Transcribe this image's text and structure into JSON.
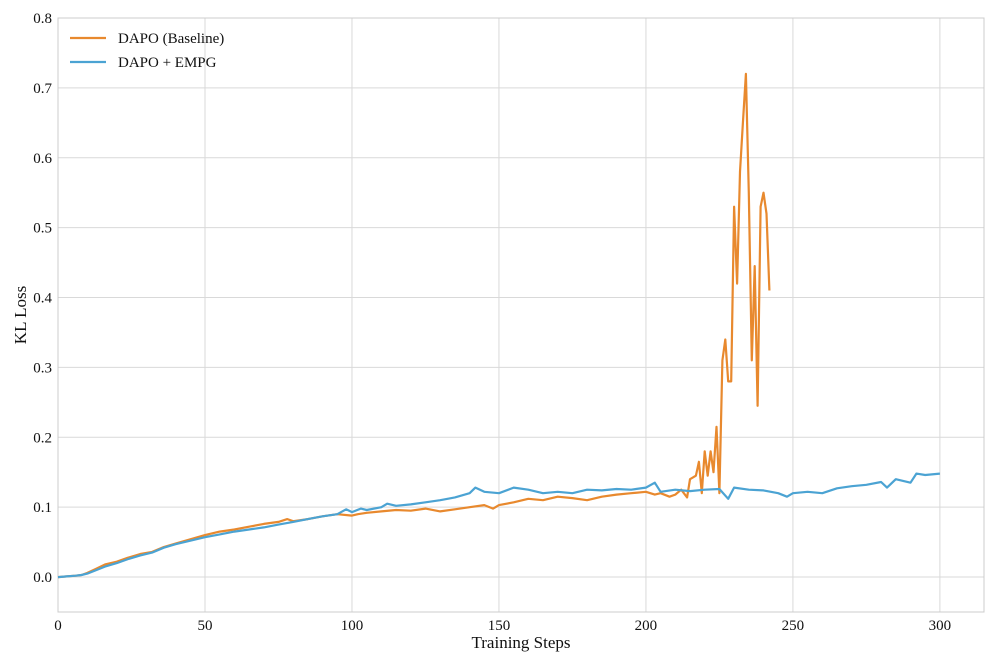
{
  "chart_data": {
    "type": "line",
    "title": "",
    "xlabel": "Training Steps",
    "ylabel": "KL Loss",
    "xlim": [
      0,
      315
    ],
    "ylim": [
      -0.05,
      0.8
    ],
    "xticks": [
      0,
      50,
      100,
      150,
      200,
      250,
      300
    ],
    "yticks": [
      0.0,
      0.1,
      0.2,
      0.3,
      0.4,
      0.5,
      0.6,
      0.7,
      0.8
    ],
    "grid": true,
    "legend_position": "top-left",
    "series": [
      {
        "name": "DAPO (Baseline)",
        "color": "#e8892e",
        "x": [
          0,
          3,
          6,
          8,
          10,
          13,
          16,
          20,
          24,
          28,
          32,
          36,
          40,
          45,
          50,
          55,
          60,
          65,
          70,
          75,
          78,
          80,
          85,
          90,
          95,
          100,
          102,
          105,
          110,
          115,
          120,
          125,
          130,
          135,
          140,
          145,
          148,
          150,
          155,
          160,
          165,
          170,
          175,
          180,
          185,
          190,
          195,
          200,
          203,
          205,
          208,
          210,
          212,
          214,
          215,
          217,
          218,
          219,
          220,
          221,
          222,
          223,
          224,
          225,
          226,
          227,
          228,
          229,
          230,
          231,
          232,
          233,
          234,
          235,
          236,
          237,
          238,
          239,
          240,
          241,
          242
        ],
        "y": [
          0.0,
          0.001,
          0.002,
          0.003,
          0.006,
          0.012,
          0.018,
          0.022,
          0.028,
          0.033,
          0.036,
          0.043,
          0.048,
          0.054,
          0.06,
          0.065,
          0.068,
          0.072,
          0.076,
          0.079,
          0.083,
          0.08,
          0.083,
          0.087,
          0.09,
          0.088,
          0.09,
          0.092,
          0.094,
          0.096,
          0.095,
          0.098,
          0.094,
          0.097,
          0.1,
          0.103,
          0.098,
          0.103,
          0.107,
          0.112,
          0.11,
          0.115,
          0.113,
          0.11,
          0.115,
          0.118,
          0.12,
          0.122,
          0.118,
          0.12,
          0.115,
          0.118,
          0.125,
          0.114,
          0.14,
          0.145,
          0.165,
          0.12,
          0.18,
          0.145,
          0.18,
          0.15,
          0.215,
          0.12,
          0.31,
          0.34,
          0.28,
          0.28,
          0.53,
          0.42,
          0.58,
          0.65,
          0.72,
          0.55,
          0.31,
          0.445,
          0.245,
          0.53,
          0.55,
          0.52,
          0.41
        ]
      },
      {
        "name": "DAPO + EMPG",
        "color": "#4ba3d3",
        "x": [
          0,
          3,
          6,
          8,
          10,
          13,
          16,
          20,
          24,
          28,
          32,
          36,
          40,
          45,
          50,
          55,
          60,
          65,
          70,
          75,
          80,
          85,
          90,
          95,
          98,
          100,
          103,
          105,
          110,
          112,
          115,
          120,
          125,
          130,
          135,
          140,
          142,
          145,
          150,
          155,
          160,
          165,
          170,
          175,
          180,
          185,
          190,
          195,
          200,
          203,
          205,
          210,
          215,
          220,
          225,
          228,
          230,
          235,
          240,
          245,
          248,
          250,
          255,
          260,
          265,
          270,
          275,
          280,
          282,
          285,
          290,
          292,
          295,
          300
        ],
        "y": [
          0.0,
          0.001,
          0.002,
          0.003,
          0.005,
          0.01,
          0.015,
          0.02,
          0.026,
          0.031,
          0.035,
          0.042,
          0.047,
          0.052,
          0.057,
          0.061,
          0.065,
          0.068,
          0.071,
          0.075,
          0.079,
          0.083,
          0.087,
          0.09,
          0.097,
          0.093,
          0.098,
          0.096,
          0.1,
          0.105,
          0.102,
          0.104,
          0.107,
          0.11,
          0.114,
          0.12,
          0.128,
          0.122,
          0.12,
          0.128,
          0.125,
          0.12,
          0.122,
          0.12,
          0.125,
          0.124,
          0.126,
          0.125,
          0.128,
          0.135,
          0.122,
          0.125,
          0.123,
          0.125,
          0.126,
          0.112,
          0.128,
          0.125,
          0.124,
          0.12,
          0.115,
          0.12,
          0.122,
          0.12,
          0.127,
          0.13,
          0.132,
          0.136,
          0.128,
          0.14,
          0.135,
          0.148,
          0.146,
          0.148
        ]
      }
    ]
  }
}
